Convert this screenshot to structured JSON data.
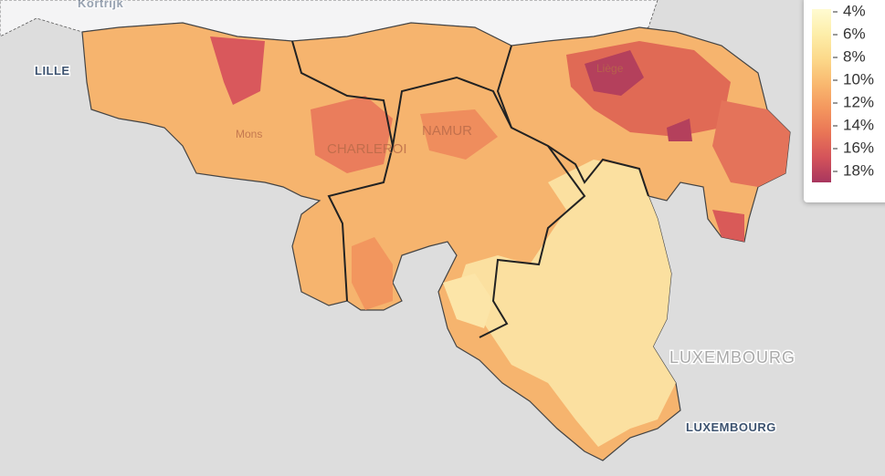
{
  "labels": {
    "lille": "LILLE",
    "kortrijk": "Kortrijk",
    "mons": "Mons",
    "charleroi": "CHARLEROI",
    "namur": "NAMUR",
    "liege": "Liège",
    "luxembourg_country": "LUXEMBOURG",
    "luxembourg_city": "LUXEMBOURG"
  },
  "legend": {
    "ticks": [
      {
        "value": 4,
        "label": "4%"
      },
      {
        "value": 6,
        "label": "6%"
      },
      {
        "value": 8,
        "label": "8%"
      },
      {
        "value": 10,
        "label": "10%"
      },
      {
        "value": 12,
        "label": "12%"
      },
      {
        "value": 14,
        "label": "14%"
      },
      {
        "value": 16,
        "label": "16%"
      },
      {
        "value": 18,
        "label": "18%"
      }
    ],
    "colors": [
      "#fffbd1",
      "#fdeeaa",
      "#fcd98a",
      "#f9b970",
      "#f4975e",
      "#e97556",
      "#d4535a",
      "#a8365e"
    ]
  }
}
